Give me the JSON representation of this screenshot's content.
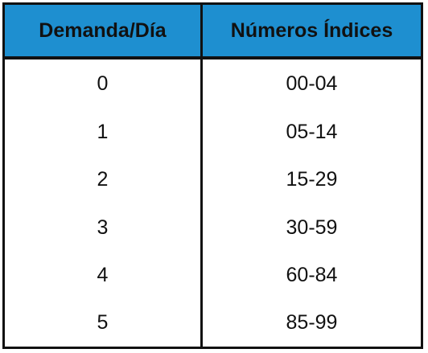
{
  "table": {
    "headers": [
      "Demanda/Día",
      "Números Índices"
    ],
    "rows": [
      [
        "0",
        "00-04"
      ],
      [
        "1",
        "05-14"
      ],
      [
        "2",
        "15-29"
      ],
      [
        "3",
        "30-59"
      ],
      [
        "4",
        "60-84"
      ],
      [
        "5",
        "85-99"
      ]
    ]
  },
  "colors": {
    "header_background": "#1e8fd0",
    "border": "#111111",
    "text": "#111111",
    "background": "#ffffff"
  }
}
